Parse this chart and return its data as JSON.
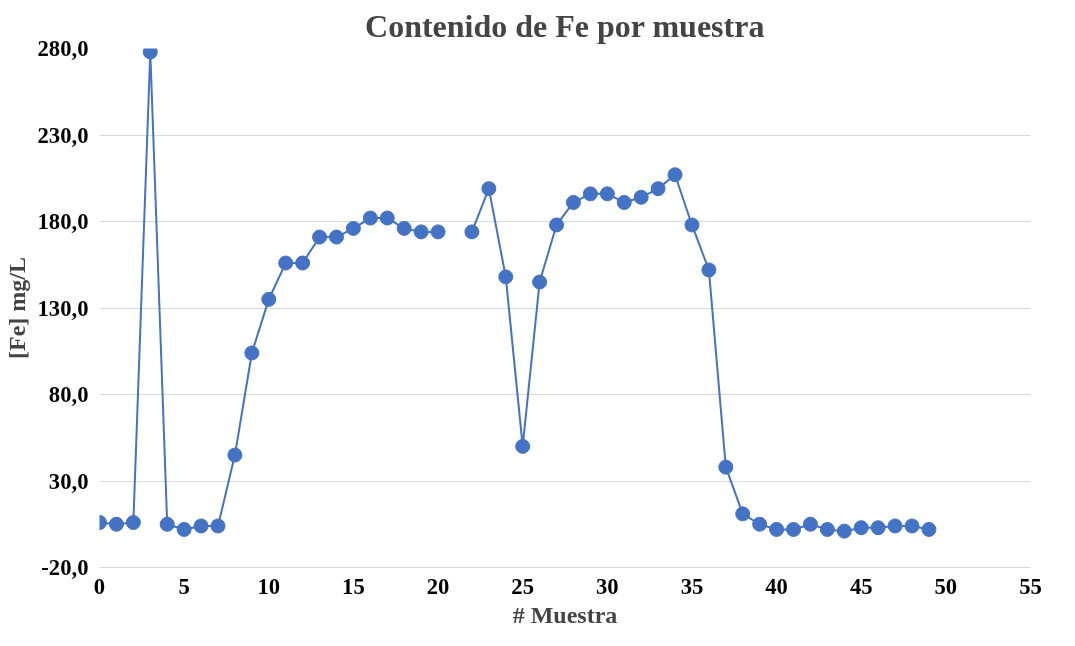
{
  "chart_data": {
    "type": "line",
    "title": "Contenido de Fe por muestra",
    "xlabel": "# Muestra",
    "ylabel": "[Fe] mg/L",
    "x": [
      0,
      1,
      2,
      3,
      4,
      5,
      6,
      7,
      8,
      9,
      10,
      11,
      12,
      13,
      14,
      15,
      16,
      17,
      18,
      19,
      20,
      21,
      22,
      23,
      24,
      25,
      26,
      27,
      28,
      29,
      30,
      31,
      32,
      33,
      34,
      35,
      36,
      37,
      38,
      39,
      40,
      41,
      42,
      43,
      44,
      45,
      46,
      47,
      48,
      49
    ],
    "series": [
      {
        "color": "#4472c4",
        "values": [
          6,
          5,
          6,
          278,
          5,
          2,
          4,
          4,
          45,
          104,
          135,
          156,
          156,
          171,
          171,
          176,
          182,
          182,
          176,
          174,
          174,
          null,
          174,
          199,
          148,
          50,
          145,
          178,
          191,
          196,
          196,
          191,
          194,
          199,
          207,
          178,
          152,
          38,
          11,
          5,
          2,
          2,
          5,
          2,
          1,
          3,
          3,
          4,
          4,
          2
        ]
      }
    ],
    "xlim": [
      0,
      55
    ],
    "xticks": [
      0,
      5,
      10,
      15,
      20,
      25,
      30,
      35,
      40,
      45,
      50,
      55
    ],
    "ylim": [
      -20,
      280
    ],
    "yticks": [
      {
        "value": -20,
        "label": "-20,0"
      },
      {
        "value": 30,
        "label": "30,0"
      },
      {
        "value": 80,
        "label": "80,0"
      },
      {
        "value": 130,
        "label": "130,0"
      },
      {
        "value": 180,
        "label": "180,0"
      },
      {
        "value": 230,
        "label": "230,0"
      },
      {
        "value": 280,
        "label": "280,0"
      }
    ],
    "grid": "y",
    "marker": "circle",
    "line_style": "solid"
  }
}
